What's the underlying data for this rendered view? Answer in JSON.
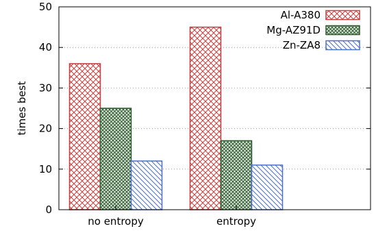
{
  "chart_data": {
    "type": "bar",
    "categories": [
      "no entropy",
      "entropy"
    ],
    "series": [
      {
        "name": "Al-A380",
        "values": [
          36,
          45
        ],
        "color": "#c83c3c",
        "pattern": "crosshatch"
      },
      {
        "name": "Mg-AZ91D",
        "values": [
          25,
          17
        ],
        "color": "#2f5a2f",
        "pattern": "dense-crosshatch"
      },
      {
        "name": "Zn-ZA8",
        "values": [
          12,
          11
        ],
        "color": "#4a6fc8",
        "pattern": "diagonal-hatch"
      }
    ],
    "title": "",
    "xlabel": "",
    "ylabel": "times best",
    "ylim": [
      0,
      50
    ],
    "yticks": [
      "0",
      "10",
      "20",
      "30",
      "40",
      "50"
    ],
    "grid": "horizontal dotted",
    "legend_position": "top-right"
  }
}
